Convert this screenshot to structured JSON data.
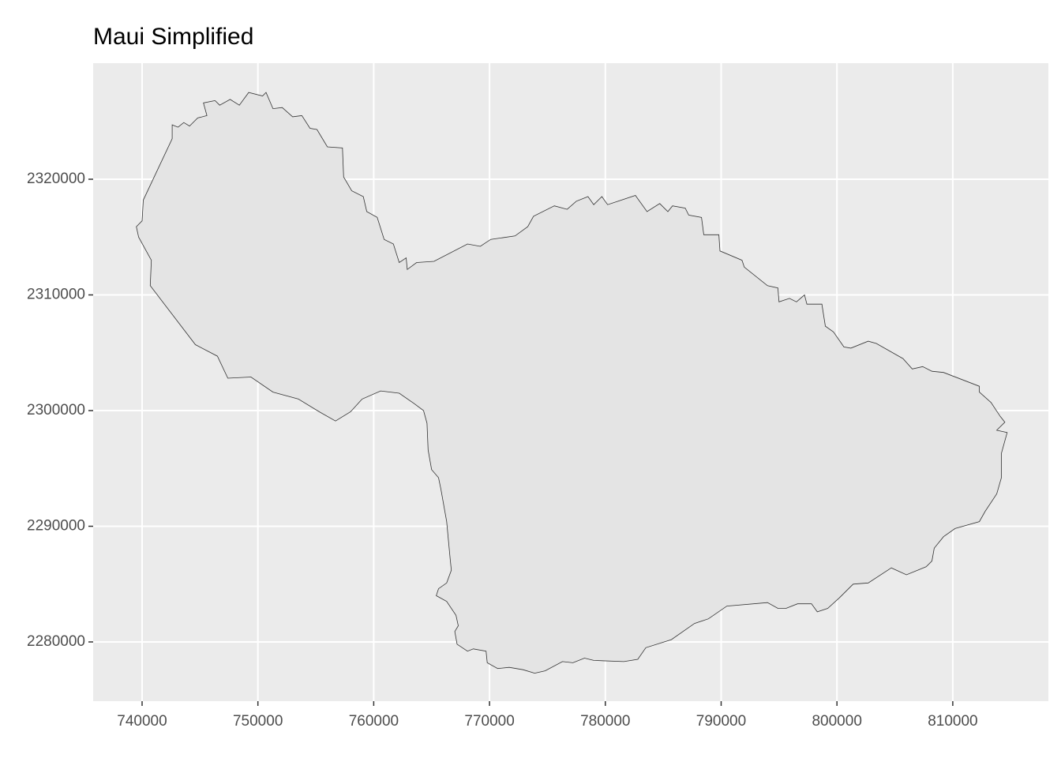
{
  "chart_data": {
    "type": "map",
    "title": "Maui Simplified",
    "x": [
      739700,
      739500,
      740000,
      740100,
      742600,
      742600,
      743100,
      743600,
      744100,
      744800,
      745600,
      745300,
      746300,
      746700,
      747600,
      748400,
      749200,
      750400,
      750700,
      751300,
      752100,
      753000,
      753800,
      754500,
      755100,
      756000,
      757300,
      757400,
      758100,
      759100,
      759400,
      760300,
      760900,
      761700,
      762200,
      762800,
      762900,
      763700,
      765200,
      768100,
      769200,
      770100,
      772200,
      773300,
      773800,
      775600,
      776700,
      777500,
      778500,
      779000,
      779700,
      780200,
      782600,
      783600,
      784700,
      785400,
      785800,
      786900,
      787200,
      788300,
      788500,
      789800,
      789900,
      791800,
      792000,
      794000,
      794900,
      795000,
      795900,
      796500,
      797200,
      797400,
      798700,
      799000,
      799700,
      800600,
      801200,
      802700,
      803400,
      805700,
      806500,
      807400,
      808200,
      809200,
      812300,
      812300,
      813300,
      814100,
      814500,
      813800,
      814700,
      814200,
      814200,
      813800,
      812800,
      812300,
      810200,
      809200,
      808400,
      808200,
      807700,
      806000,
      804700,
      802700,
      801400,
      800200,
      799200,
      798300,
      797800,
      796600,
      795600,
      794900,
      794000,
      790500,
      788900,
      787700,
      785700,
      783500,
      782800,
      781600,
      779000,
      778200,
      777200,
      776300,
      774800,
      773900,
      772900,
      771700,
      770700,
      769800,
      769700,
      768600,
      768100,
      767200,
      767000,
      767300,
      767100,
      766300,
      765400,
      765600,
      766300,
      766700,
      766600,
      766300,
      765800,
      765600,
      765000,
      764700,
      764600,
      764300,
      763500,
      762200,
      760600,
      759000,
      758000,
      756700,
      755300,
      753500,
      751300,
      749400,
      747400,
      746500,
      744600,
      740700,
      740800
    ],
    "values": [
      2315000,
      2315900,
      2316400,
      2318200,
      2323500,
      2324700,
      2324500,
      2324900,
      2324600,
      2325300,
      2325500,
      2326600,
      2326800,
      2326400,
      2326900,
      2326400,
      2327500,
      2327200,
      2327500,
      2326100,
      2326200,
      2325400,
      2325500,
      2324400,
      2324300,
      2322800,
      2322700,
      2320200,
      2319000,
      2318500,
      2317200,
      2316700,
      2314800,
      2314400,
      2312800,
      2313200,
      2312200,
      2312800,
      2312900,
      2314400,
      2314200,
      2314800,
      2315100,
      2315900,
      2316800,
      2317700,
      2317400,
      2318100,
      2318500,
      2317800,
      2318500,
      2317800,
      2318600,
      2317200,
      2317900,
      2317200,
      2317700,
      2317500,
      2316900,
      2316700,
      2315200,
      2315200,
      2313800,
      2313000,
      2312400,
      2310800,
      2310600,
      2309400,
      2309700,
      2309400,
      2310000,
      2309200,
      2309200,
      2307300,
      2306800,
      2305500,
      2305400,
      2306000,
      2305800,
      2304500,
      2303600,
      2303800,
      2303400,
      2303300,
      2302100,
      2301600,
      2300700,
      2299500,
      2299000,
      2298300,
      2298100,
      2296300,
      2294200,
      2292800,
      2291300,
      2290400,
      2289800,
      2289100,
      2288100,
      2287000,
      2286500,
      2285800,
      2286400,
      2285100,
      2285000,
      2283800,
      2282900,
      2282600,
      2283300,
      2283300,
      2282900,
      2282900,
      2283400,
      2283100,
      2282000,
      2281600,
      2280200,
      2279500,
      2278500,
      2278300,
      2278400,
      2278600,
      2278200,
      2278300,
      2277500,
      2277300,
      2277600,
      2277800,
      2277700,
      2278200,
      2279200,
      2279400,
      2279200,
      2279800,
      2280900,
      2281400,
      2282300,
      2283500,
      2284000,
      2284600,
      2285100,
      2286200,
      2287200,
      2290400,
      2293200,
      2294200,
      2294900,
      2296600,
      2298900,
      2300000,
      2300600,
      2301500,
      2301700,
      2301000,
      2299900,
      2299100,
      2299900,
      2301000,
      2301600,
      2302900,
      2302800,
      2304700,
      2305700,
      2310800,
      2313000
    ],
    "color": "#e4e4e4",
    "stroke": "#333333",
    "xlim": [
      735774,
      818255
    ],
    "ylim": [
      2274881,
      2330034
    ],
    "xticks": [
      740000,
      750000,
      760000,
      770000,
      780000,
      790000,
      800000,
      810000
    ],
    "yticks": [
      2280000,
      2290000,
      2300000,
      2310000,
      2320000
    ],
    "grid": true
  }
}
